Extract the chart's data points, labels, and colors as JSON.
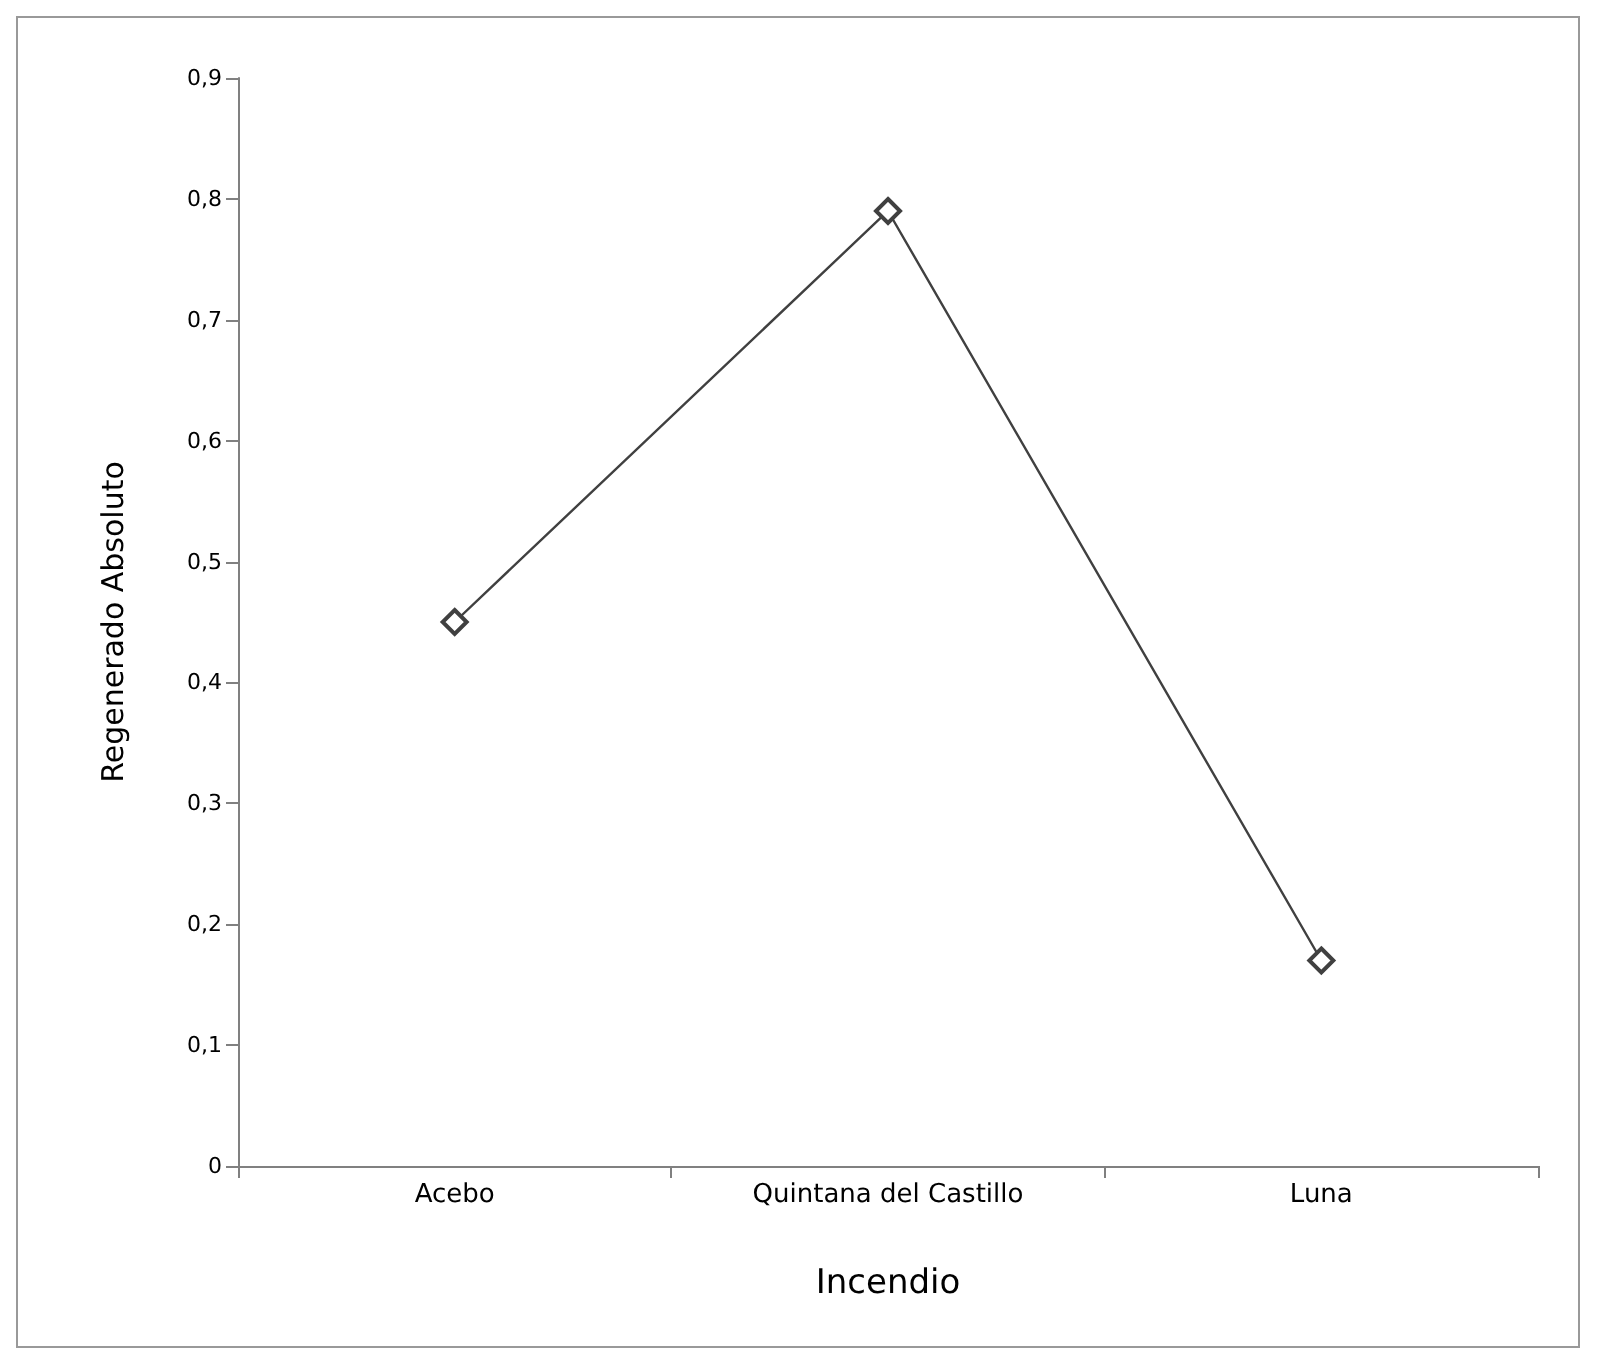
{
  "chart_data": {
    "type": "line",
    "xlabel": "Incendio",
    "ylabel": "Regenerado Absoluto",
    "categories": [
      "Acebo",
      "Quintana del Castillo",
      "Luna"
    ],
    "series": [
      {
        "color": "#404040",
        "values": [
          0.45,
          0.79,
          0.17
        ]
      }
    ],
    "ylim": [
      0,
      0.9
    ],
    "yticks": [
      0,
      {
        "value": 0.1,
        "label": "0,1"
      },
      {
        "value": 0.2,
        "label": "0,2"
      },
      {
        "value": 0.3,
        "label": "0,3"
      },
      {
        "value": 0.4,
        "label": "0,4"
      },
      {
        "value": 0.5,
        "label": "0,5"
      },
      {
        "value": 0.6,
        "label": "0,6"
      },
      {
        "value": 0.7,
        "label": "0,7"
      },
      {
        "value": 0.8,
        "label": "0,8"
      },
      {
        "value": 0.9,
        "label": "0,9"
      }
    ],
    "grid": false,
    "marker": "diamond",
    "line_style": "solid"
  }
}
